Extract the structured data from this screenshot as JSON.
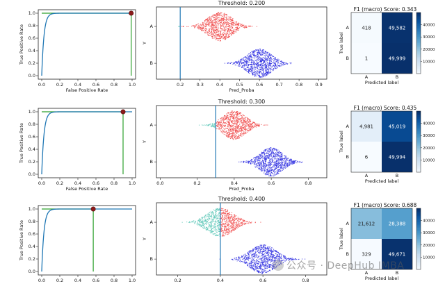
{
  "colors": {
    "roc": "#1f77b4",
    "diag": "#2ca02c",
    "green_vert": "#2ca02c",
    "marker": "#8b1a1a",
    "class_A_above": "#f04b4b",
    "class_A_below": "#5ec8b8",
    "class_B": "#2f2fe0",
    "threshold_line": "#1f77b4"
  },
  "watermark": "公众号 · DeepHub IMBA",
  "rows": [
    {
      "roc": {
        "xlabel": "False Positive Rate",
        "ylabel": "True Positive Rate",
        "xticks": [
          "0.0",
          "0.2",
          "0.4",
          "0.6",
          "0.8",
          "1.0"
        ],
        "yticks": [
          "0.0",
          "0.2",
          "0.4",
          "0.6",
          "0.8",
          "1.0"
        ],
        "point": {
          "fpr": 0.99,
          "tpr": 1.0
        }
      },
      "swarm": {
        "title": "Threshold: 0.200",
        "threshold": 0.2,
        "xlabel": "Pred_Proba",
        "ylabel": "Y",
        "categories": [
          "A",
          "B"
        ],
        "xlim": [
          0.08,
          0.94
        ],
        "xticks": [
          "0.2",
          "0.3",
          "0.4",
          "0.5",
          "0.6",
          "0.7",
          "0.8",
          "0.9"
        ],
        "xtick_values": [
          0.2,
          0.3,
          0.4,
          0.5,
          0.6,
          0.7,
          0.8,
          0.9
        ],
        "A_center": 0.4,
        "A_spread": 0.06,
        "B_center": 0.6,
        "B_spread": 0.06
      },
      "cm": {
        "title": "F1 (macro) Score: 0.343",
        "values": [
          [
            418,
            49582
          ],
          [
            1,
            49999
          ]
        ],
        "labels": [
          [
            "418",
            "49,582"
          ],
          [
            "1",
            "49,999"
          ]
        ],
        "xlabel": "Predicted label",
        "ylabel": "True label",
        "classes": [
          "A",
          "B"
        ],
        "cbar_ticks": [
          "10000",
          "20000",
          "30000",
          "40000"
        ]
      }
    },
    {
      "roc": {
        "xlabel": "False Positive Rate",
        "ylabel": "True Positive Rate",
        "xticks": [
          "0.0",
          "0.2",
          "0.4",
          "0.6",
          "0.8",
          "1.0"
        ],
        "yticks": [
          "0.0",
          "0.2",
          "0.4",
          "0.6",
          "0.8",
          "1.0"
        ],
        "point": {
          "fpr": 0.9,
          "tpr": 1.0
        }
      },
      "swarm": {
        "title": "Threshold: 0.300",
        "threshold": 0.3,
        "xlabel": "Pred_Proba",
        "ylabel": "Y",
        "categories": [
          "A",
          "B"
        ],
        "xlim": [
          -0.02,
          0.9
        ],
        "xticks": [
          "0.0",
          "0.2",
          "0.4",
          "0.6",
          "0.8"
        ],
        "xtick_values": [
          0.0,
          0.2,
          0.4,
          0.6,
          0.8
        ],
        "A_center": 0.4,
        "A_spread": 0.06,
        "B_center": 0.6,
        "B_spread": 0.06
      },
      "cm": {
        "title": "F1 (macro) Score: 0.435",
        "values": [
          [
            4981,
            45019
          ],
          [
            6,
            49994
          ]
        ],
        "labels": [
          [
            "4,981",
            "45,019"
          ],
          [
            "6",
            "49,994"
          ]
        ],
        "xlabel": "Predicted label",
        "ylabel": "True label",
        "classes": [
          "A",
          "B"
        ],
        "cbar_ticks": [
          "10000",
          "20000",
          "30000",
          "40000"
        ]
      }
    },
    {
      "roc": {
        "xlabel": "False Positive Rate",
        "ylabel": "True Positive Rate",
        "xticks": [
          "0.0",
          "0.2",
          "0.4",
          "0.6",
          "0.8",
          "1.0"
        ],
        "yticks": [
          "0.0",
          "0.2",
          "0.4",
          "0.6",
          "0.8",
          "1.0"
        ],
        "point": {
          "fpr": 0.57,
          "tpr": 1.0
        }
      },
      "swarm": {
        "title": "Threshold: 0.400",
        "threshold": 0.4,
        "xlabel": "Pred_Proba",
        "ylabel": "Y",
        "categories": [
          "A",
          "B"
        ],
        "xlim": [
          0.1,
          0.9
        ],
        "xticks": [
          "0.2",
          "0.4",
          "0.6",
          "0.8"
        ],
        "xtick_values": [
          0.2,
          0.4,
          0.6,
          0.8
        ],
        "A_center": 0.4,
        "A_spread": 0.06,
        "B_center": 0.6,
        "B_spread": 0.06
      },
      "cm": {
        "title": "F1 (macro) Score: 0.688",
        "values": [
          [
            21612,
            28388
          ],
          [
            329,
            49671
          ]
        ],
        "labels": [
          [
            "21,612",
            "28,388"
          ],
          [
            "329",
            "49,671"
          ]
        ],
        "xlabel": "Predicted label",
        "ylabel": "True label",
        "classes": [
          "A",
          "B"
        ],
        "cbar_ticks": [
          "10000",
          "20000",
          "30000",
          "40000"
        ]
      }
    }
  ],
  "chart_data": [
    {
      "type": "line",
      "x": [
        0,
        0.02,
        0.05,
        0.1,
        0.2,
        0.4,
        0.6,
        0.8,
        1.0
      ],
      "y": [
        0,
        0.7,
        0.85,
        0.93,
        0.97,
        0.99,
        1.0,
        1.0,
        1.0
      ],
      "xlabel": "False Positive Rate",
      "ylabel": "True Positive Rate",
      "ylim": [
        0,
        1
      ],
      "marker_point": [
        0.99,
        1.0
      ]
    },
    {
      "type": "scatter",
      "title": "Threshold: 0.200",
      "categories": [
        "A",
        "B"
      ],
      "xlabel": "Pred_Proba",
      "ylabel": "Y",
      "threshold": 0.2
    },
    {
      "type": "heatmap",
      "title": "F1 (macro) Score: 0.343",
      "values": [
        [
          418,
          49582
        ],
        [
          1,
          49999
        ]
      ],
      "xlabel": "Predicted label",
      "ylabel": "True label",
      "classes": [
        "A",
        "B"
      ]
    },
    {
      "type": "line",
      "x": [
        0,
        0.02,
        0.05,
        0.1,
        0.2,
        0.4,
        0.6,
        0.8,
        1.0
      ],
      "y": [
        0,
        0.7,
        0.85,
        0.93,
        0.97,
        0.99,
        1.0,
        1.0,
        1.0
      ],
      "xlabel": "False Positive Rate",
      "ylabel": "True Positive Rate",
      "ylim": [
        0,
        1
      ],
      "marker_point": [
        0.9,
        1.0
      ]
    },
    {
      "type": "scatter",
      "title": "Threshold: 0.300",
      "categories": [
        "A",
        "B"
      ],
      "xlabel": "Pred_Proba",
      "ylabel": "Y",
      "threshold": 0.3
    },
    {
      "type": "heatmap",
      "title": "F1 (macro) Score: 0.435",
      "values": [
        [
          4981,
          45019
        ],
        [
          6,
          49994
        ]
      ],
      "xlabel": "Predicted label",
      "ylabel": "True label",
      "classes": [
        "A",
        "B"
      ]
    },
    {
      "type": "line",
      "x": [
        0,
        0.02,
        0.05,
        0.1,
        0.2,
        0.4,
        0.6,
        0.8,
        1.0
      ],
      "y": [
        0,
        0.7,
        0.85,
        0.93,
        0.97,
        0.99,
        1.0,
        1.0,
        1.0
      ],
      "xlabel": "False Positive Rate",
      "ylabel": "True Positive Rate",
      "ylim": [
        0,
        1
      ],
      "marker_point": [
        0.57,
        1.0
      ]
    },
    {
      "type": "scatter",
      "title": "Threshold: 0.400",
      "categories": [
        "A",
        "B"
      ],
      "xlabel": "Pred_Proba",
      "ylabel": "Y",
      "threshold": 0.4
    },
    {
      "type": "heatmap",
      "title": "F1 (macro) Score: 0.688",
      "values": [
        [
          21612,
          28388
        ],
        [
          329,
          49671
        ]
      ],
      "xlabel": "Predicted label",
      "ylabel": "True label",
      "classes": [
        "A",
        "B"
      ]
    }
  ]
}
